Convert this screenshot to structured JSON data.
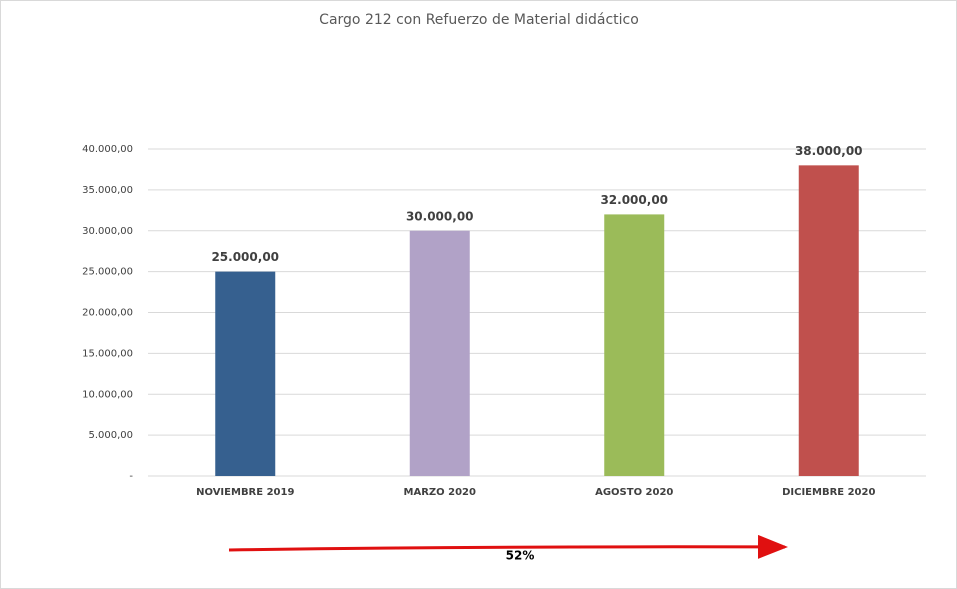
{
  "chart_data": {
    "type": "bar",
    "title": "Cargo 212 con Refuerzo de Material didáctico",
    "categories": [
      "NOVIEMBRE 2019",
      "MARZO 2020",
      "AGOSTO 2020",
      "DICIEMBRE 2020"
    ],
    "values": [
      25000,
      30000,
      32000,
      38000
    ],
    "value_labels": [
      "25.000,00",
      "30.000,00",
      "32.000,00",
      "38.000,00"
    ],
    "colors": [
      "#36608f",
      "#b1a2c7",
      "#9bbb59",
      "#c0504d"
    ],
    "ylim": [
      0,
      40000
    ],
    "yticks": [
      {
        "value": 0,
        "label": "-"
      },
      {
        "value": 5000,
        "label": "5.000,00"
      },
      {
        "value": 10000,
        "label": "10.000,00"
      },
      {
        "value": 15000,
        "label": "15.000,00"
      },
      {
        "value": 20000,
        "label": "20.000,00"
      },
      {
        "value": 25000,
        "label": "25.000,00"
      },
      {
        "value": 30000,
        "label": "30.000,00"
      },
      {
        "value": 35000,
        "label": "35.000,00"
      },
      {
        "value": 40000,
        "label": "40.000,00"
      }
    ],
    "grid": true,
    "annotation": "52%"
  }
}
